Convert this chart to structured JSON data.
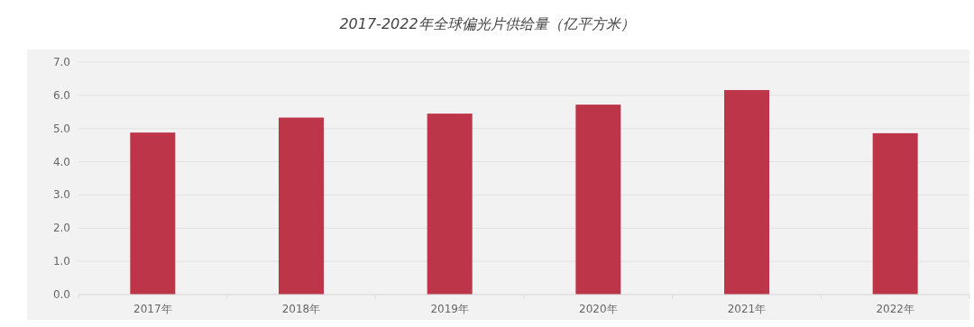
{
  "chart_data": {
    "type": "bar",
    "title": "2017-2022年全球偏光片供给量（亿平方米）",
    "categories": [
      "2017年",
      "2018年",
      "2019年",
      "2020年",
      "2021年",
      "2022年"
    ],
    "values": [
      4.88,
      5.33,
      5.45,
      5.72,
      6.16,
      4.86
    ],
    "color": "#bc3549",
    "ylim": [
      0,
      7
    ],
    "yticks": [
      {
        "value": 0,
        "label": "0.0"
      },
      {
        "value": 1,
        "label": "1.0"
      },
      {
        "value": 2,
        "label": "2.0"
      },
      {
        "value": 3,
        "label": "3.0"
      },
      {
        "value": 4,
        "label": "4.0"
      },
      {
        "value": 5,
        "label": "5.0"
      },
      {
        "value": 6,
        "label": "6.0"
      },
      {
        "value": 7,
        "label": "7.0"
      }
    ],
    "grid": "y"
  }
}
